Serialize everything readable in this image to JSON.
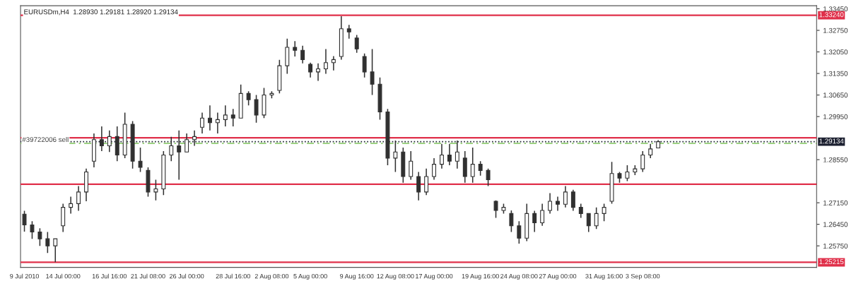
{
  "chart_data": {
    "type": "candlestick",
    "title": "EURUSDm,H4  1.28930 1.29181 1.28920 1.29134",
    "categories": [
      "9 Jul 2010",
      null,
      null,
      null,
      null,
      "14 Jul 00:00",
      null,
      null,
      null,
      null,
      null,
      "16 Jul 16:00",
      null,
      null,
      null,
      null,
      "21 Jul 08:00",
      null,
      null,
      null,
      null,
      "26 Jul 00:00",
      null,
      null,
      null,
      null,
      null,
      "28 Jul 16:00",
      null,
      null,
      null,
      null,
      "2 Aug 08:00",
      null,
      null,
      null,
      null,
      "5 Aug 00:00",
      null,
      null,
      null,
      null,
      null,
      "9 Aug 16:00",
      null,
      null,
      null,
      null,
      "12 Aug 08:00",
      null,
      null,
      null,
      null,
      "17 Aug 00:00",
      null,
      null,
      null,
      null,
      null,
      "19 Aug 16:00",
      null,
      null,
      null,
      null,
      "24 Aug 08:00",
      null,
      null,
      null,
      null,
      "27 Aug 00:00",
      null,
      null,
      null,
      null,
      null,
      "31 Aug 16:00",
      null,
      null,
      null,
      null,
      "3 Sep 08:00",
      null,
      null,
      null,
      null,
      null,
      null,
      null,
      null,
      null,
      null,
      null,
      null,
      null,
      null,
      null,
      null,
      null,
      null,
      null,
      null,
      null,
      null
    ],
    "ohlc": [
      [
        1.2678,
        1.2689,
        1.2621,
        1.2643
      ],
      [
        1.2643,
        1.2655,
        1.2598,
        1.262
      ],
      [
        1.262,
        1.2632,
        1.2575,
        1.2598
      ],
      [
        1.2598,
        1.262,
        1.2552,
        1.2575
      ],
      [
        1.2575,
        1.2598,
        1.2522,
        1.2598
      ],
      [
        1.264,
        1.2712,
        1.262,
        1.27
      ],
      [
        1.27,
        1.2735,
        1.268,
        1.2712
      ],
      [
        1.2712,
        1.2769,
        1.2689,
        1.275
      ],
      [
        1.275,
        1.2826,
        1.272,
        1.2815
      ],
      [
        1.285,
        1.294,
        1.283,
        1.292
      ],
      [
        1.292,
        1.2963,
        1.2883,
        1.29
      ],
      [
        1.29,
        1.295,
        1.288,
        1.293
      ],
      [
        1.293,
        1.2963,
        1.285,
        1.287
      ],
      [
        1.287,
        1.3008,
        1.286,
        1.297
      ],
      [
        1.297,
        1.298,
        1.2826,
        1.285
      ],
      [
        1.285,
        1.2894,
        1.2815,
        1.283
      ],
      [
        1.282,
        1.283,
        1.2735,
        1.275
      ],
      [
        1.275,
        1.279,
        1.2723,
        1.276
      ],
      [
        1.276,
        1.2883,
        1.274,
        1.287
      ],
      [
        1.287,
        1.2929,
        1.285,
        1.29
      ],
      [
        1.29,
        1.295,
        1.279,
        1.288
      ],
      [
        1.288,
        1.294,
        1.288,
        1.292
      ],
      [
        1.292,
        1.295,
        1.29,
        1.293
      ],
      [
        1.296,
        1.3008,
        1.294,
        1.299
      ],
      [
        1.299,
        1.3031,
        1.295,
        1.2975
      ],
      [
        1.2975,
        1.3008,
        1.294,
        1.2985
      ],
      [
        1.2985,
        1.3031,
        1.2963,
        1.3
      ],
      [
        1.3,
        1.302,
        1.2963,
        1.299
      ],
      [
        1.299,
        1.3099,
        1.299,
        1.307
      ],
      [
        1.307,
        1.3077,
        1.3031,
        1.305
      ],
      [
        1.305,
        1.3065,
        1.2975,
        1.3
      ],
      [
        1.3,
        1.3088,
        1.299,
        1.3065
      ],
      [
        1.3065,
        1.3077,
        1.3054,
        1.307
      ],
      [
        1.308,
        1.3179,
        1.307,
        1.316
      ],
      [
        1.316,
        1.3248,
        1.3134,
        1.322
      ],
      [
        1.322,
        1.324,
        1.319,
        1.321
      ],
      [
        1.321,
        1.3225,
        1.3168,
        1.318
      ],
      [
        1.3165,
        1.317,
        1.3122,
        1.314
      ],
      [
        1.314,
        1.3168,
        1.3111,
        1.315
      ],
      [
        1.315,
        1.3214,
        1.3134,
        1.317
      ],
      [
        1.317,
        1.3191,
        1.3145,
        1.318
      ],
      [
        1.319,
        1.3321,
        1.318,
        1.328
      ],
      [
        1.328,
        1.3293,
        1.3248,
        1.327
      ],
      [
        1.325,
        1.326,
        1.3202,
        1.3215
      ],
      [
        1.319,
        1.32,
        1.3122,
        1.314
      ],
      [
        1.314,
        1.3214,
        1.3065,
        1.31
      ],
      [
        1.31,
        1.3122,
        1.2985,
        1.301
      ],
      [
        1.301,
        1.302,
        1.2837,
        1.286
      ],
      [
        1.286,
        1.2917,
        1.2815,
        1.288
      ],
      [
        1.288,
        1.2894,
        1.278,
        1.28
      ],
      [
        1.28,
        1.2883,
        1.279,
        1.285
      ],
      [
        1.28,
        1.2815,
        1.2723,
        1.275
      ],
      [
        1.275,
        1.2826,
        1.274,
        1.28
      ],
      [
        1.28,
        1.286,
        1.279,
        1.284
      ],
      [
        1.284,
        1.2906,
        1.2826,
        1.287
      ],
      [
        1.287,
        1.2906,
        1.2837,
        1.285
      ],
      [
        1.285,
        1.2917,
        1.2826,
        1.288
      ],
      [
        1.286,
        1.2883,
        1.278,
        1.28
      ],
      [
        1.28,
        1.2894,
        1.278,
        1.284
      ],
      [
        1.284,
        1.285,
        1.2803,
        1.282
      ],
      [
        1.282,
        1.2826,
        1.2769,
        1.279
      ],
      [
        1.272,
        1.2723,
        1.2666,
        1.269
      ],
      [
        1.269,
        1.2712,
        1.268,
        1.27
      ],
      [
        1.268,
        1.269,
        1.262,
        1.264
      ],
      [
        1.264,
        1.2655,
        1.2582,
        1.26
      ],
      [
        1.26,
        1.2712,
        1.259,
        1.268
      ],
      [
        1.268,
        1.2689,
        1.262,
        1.265
      ],
      [
        1.265,
        1.2712,
        1.264,
        1.269
      ],
      [
        1.269,
        1.2746,
        1.268,
        1.272
      ],
      [
        1.272,
        1.2735,
        1.2689,
        1.271
      ],
      [
        1.271,
        1.2769,
        1.27,
        1.275
      ],
      [
        1.275,
        1.2757,
        1.2689,
        1.27
      ],
      [
        1.27,
        1.2712,
        1.2666,
        1.268
      ],
      [
        1.268,
        1.268,
        1.262,
        1.264
      ],
      [
        1.264,
        1.27,
        1.263,
        1.268
      ],
      [
        1.268,
        1.2712,
        1.2655,
        1.27
      ],
      [
        1.272,
        1.2848,
        1.2712,
        1.281
      ],
      [
        1.281,
        1.2815,
        1.278,
        1.2795
      ],
      [
        1.2795,
        1.2837,
        1.2785,
        1.2815
      ],
      [
        1.2815,
        1.2837,
        1.2805,
        1.2825
      ],
      [
        1.2825,
        1.2883,
        1.2815,
        1.287
      ],
      [
        1.287,
        1.2906,
        1.286,
        1.289
      ],
      [
        1.2893,
        1.29181,
        1.2892,
        1.29134
      ],
      null,
      null,
      null,
      null,
      null,
      null,
      null,
      null,
      null,
      null,
      null,
      null,
      null,
      null,
      null,
      null,
      null,
      null,
      null,
      null
    ],
    "color": "#303030",
    "ylim": [
      1.2505,
      1.3355
    ],
    "yticks": [
      {
        "value": 1.2575,
        "label": "1.25750"
      },
      {
        "value": 1.2645,
        "label": "1.26450"
      },
      {
        "value": 1.2715,
        "label": "1.27150"
      },
      {
        "value": 1.2855,
        "label": "1.28550"
      },
      {
        "value": 1.2995,
        "label": "1.29950"
      },
      {
        "value": 1.3065,
        "label": "1.30650"
      },
      {
        "value": 1.3135,
        "label": "1.31350"
      },
      {
        "value": 1.3205,
        "label": "1.32050"
      },
      {
        "value": 1.3275,
        "label": "1.32750"
      },
      {
        "value": 1.3345,
        "label": "1.33450"
      }
    ],
    "ref_lines": [
      {
        "axis": "y",
        "value": 1.3324,
        "label": "1.33240",
        "color": "#e0304a"
      },
      {
        "axis": "y",
        "value": 1.2926,
        "label": null,
        "color": "#e0304a"
      },
      {
        "axis": "y",
        "value": 1.2775,
        "label": null,
        "color": "#e0304a"
      },
      {
        "axis": "y",
        "value": 1.25215,
        "label": "1.25215",
        "color": "#e0304a"
      },
      {
        "axis": "y",
        "value": 1.2908,
        "label": null,
        "color": "#7cc35a",
        "line_style": "dashed"
      },
      {
        "axis": "y",
        "value": 1.29134,
        "label": "1.29134",
        "color": "#1c2030",
        "line_style": "dotted"
      }
    ],
    "annotations": [
      {
        "text": "#39722006 sell",
        "y": 1.2908
      }
    ],
    "grid": false,
    "legend": false
  }
}
